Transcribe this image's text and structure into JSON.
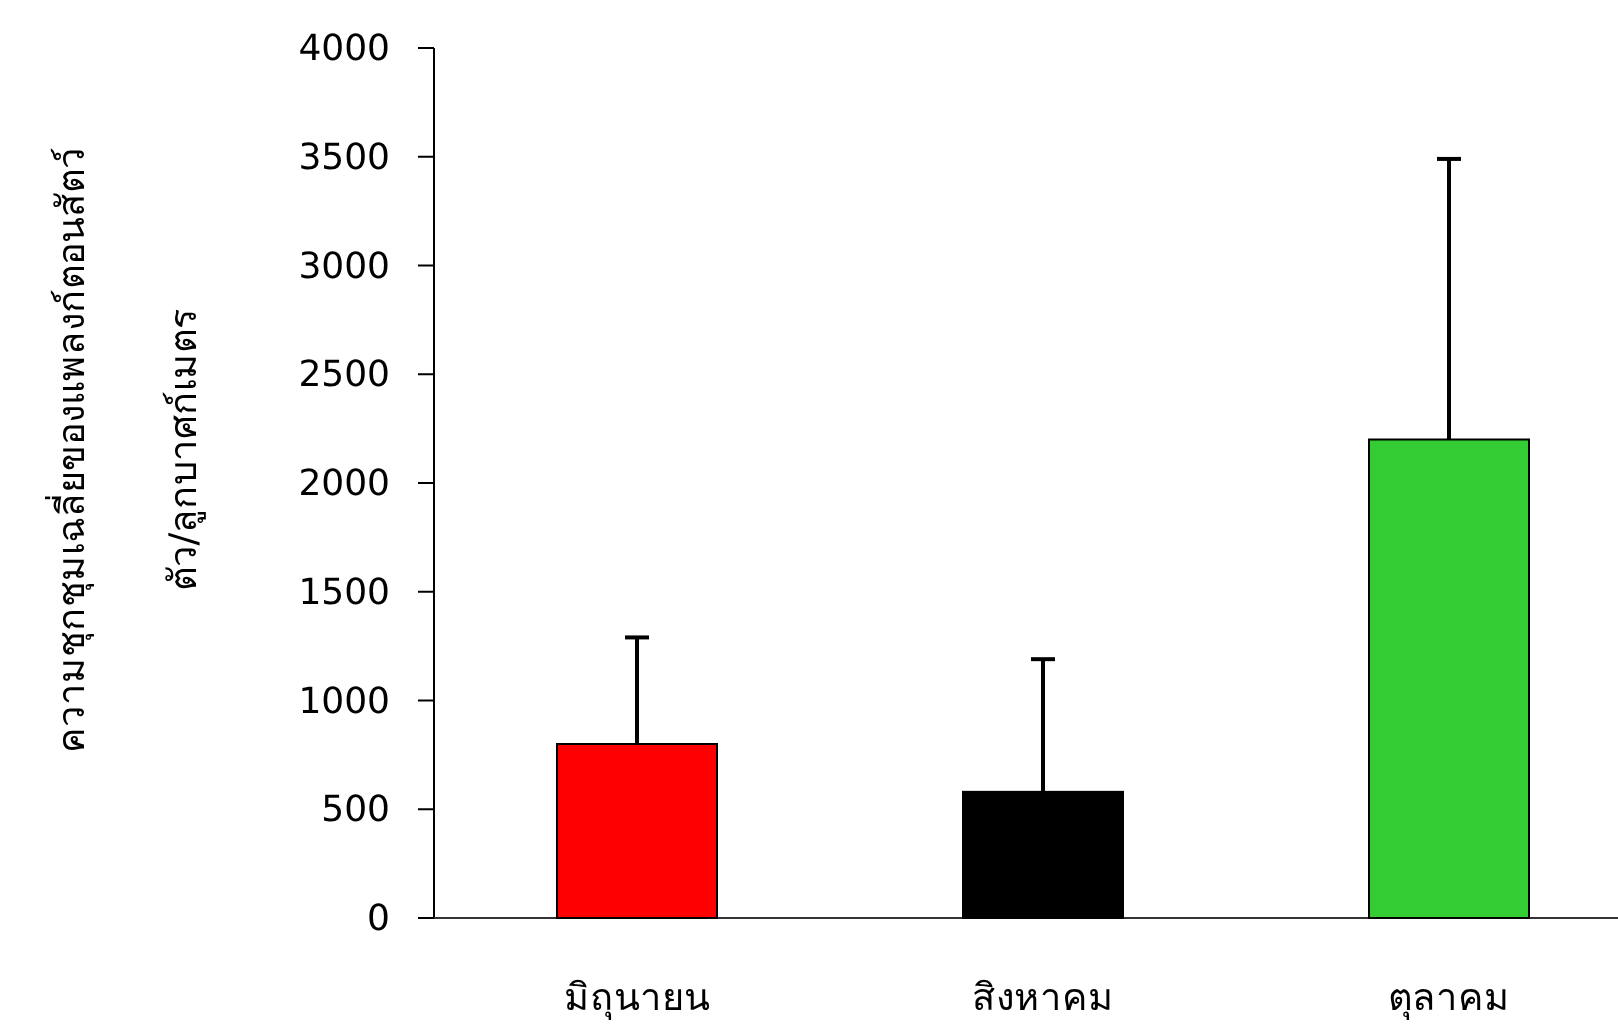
{
  "chart_data": {
    "type": "bar",
    "ylabel": "ความชุกชุมเฉลี่ยของแพลงก์ตอนสัตว์\nตัว/ลูกบาศก์เมตร",
    "categories": [
      "มิถุนายน",
      "สิงหาคม",
      "ตุลาคม"
    ],
    "values": [
      800,
      580,
      2200
    ],
    "colors": [
      "#ff0000",
      "#000000",
      "#33cc33"
    ],
    "errors": [
      [
        800,
        1290
      ],
      [
        580,
        1190
      ],
      [
        2200,
        3490
      ]
    ],
    "ylim": [
      0,
      4000
    ],
    "yticks": [
      0,
      500,
      1000,
      1500,
      2000,
      2500,
      3000,
      3500,
      4000
    ],
    "grid": false
  }
}
